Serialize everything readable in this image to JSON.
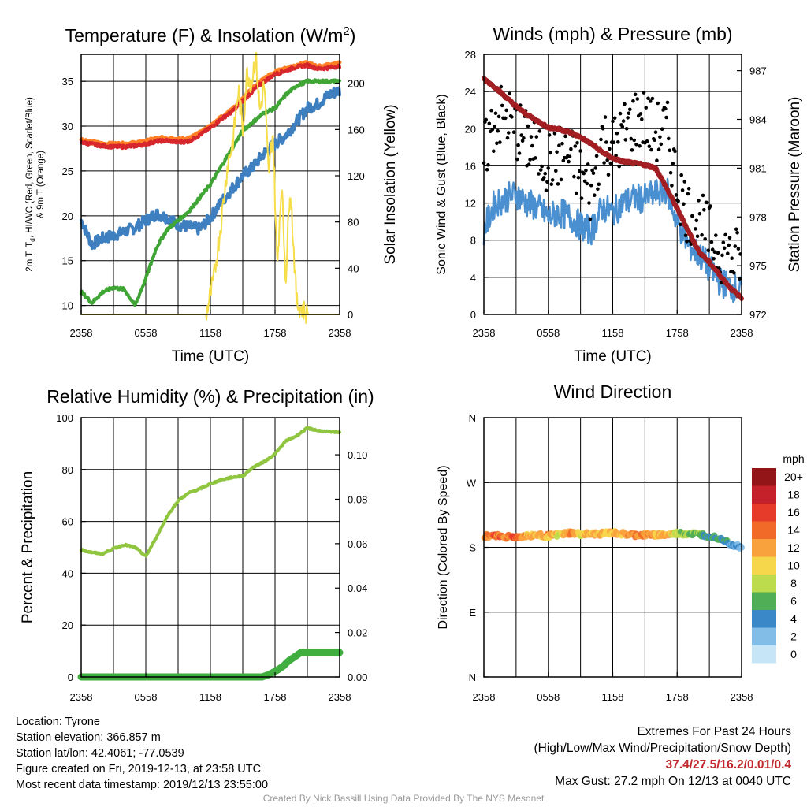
{
  "chart_data": [
    {
      "type": "line",
      "title": "Temperature (F) & Insolation (W/m²)",
      "title_parts": [
        "Temperature (F) & Insolation (W/m",
        "2",
        ")"
      ],
      "xlabel": "Time (UTC)",
      "ylabel": "2m T, Td, HI/WC (Red, Green, Scarlet/Blue) & 9m T (Orange)",
      "ylabel_lines": [
        "2m T, T",
        "d",
        ", HI/WC (Red, Green, Scarlet/Blue)",
        "& 9m T (Orange)"
      ],
      "ylabel_right": "Solar Insolation (Yellow)",
      "x_ticks": [
        "2358",
        "0558",
        "1158",
        "1758",
        "2358"
      ],
      "y_ticks": [
        "10",
        "15",
        "20",
        "25",
        "30",
        "35"
      ],
      "y_ticks_right": [
        "0",
        "40",
        "80",
        "120",
        "160",
        "200"
      ],
      "ylim": [
        9,
        38
      ],
      "ylim_right": [
        0,
        225
      ],
      "grid": true,
      "series": [
        {
          "axis": "left",
          "color": "#3d7fbf",
          "x": [
            0,
            1,
            2,
            3,
            4,
            5,
            6,
            7,
            8,
            9,
            10,
            11,
            12,
            13,
            14,
            15,
            16,
            17,
            18,
            19,
            20,
            21,
            22,
            23,
            24
          ],
          "values": [
            19.5,
            16.8,
            17.5,
            17.8,
            18.2,
            18.7,
            19.5,
            20.2,
            19.8,
            19.0,
            18.8,
            18.5,
            19.8,
            21.5,
            23.0,
            24.5,
            25.5,
            27.0,
            28.0,
            29.0,
            30.5,
            32.0,
            32.5,
            33.5,
            34.0
          ]
        },
        {
          "axis": "left",
          "color": "#ff7f24",
          "x": [
            0,
            1,
            2,
            3,
            4,
            5,
            6,
            7,
            8,
            9,
            10,
            11,
            12,
            13,
            14,
            15,
            16,
            17,
            18,
            19,
            20,
            21,
            22,
            23,
            24
          ],
          "values": [
            28.5,
            28.2,
            28.0,
            28.0,
            28.0,
            28.1,
            28.3,
            28.6,
            28.7,
            28.5,
            28.6,
            29.2,
            30.0,
            31.0,
            31.8,
            33.0,
            34.3,
            35.3,
            36.0,
            36.4,
            36.8,
            37.0,
            36.6,
            36.8,
            37.0
          ]
        },
        {
          "axis": "left",
          "color": "#d8262d",
          "x": [
            0,
            1,
            2,
            3,
            4,
            5,
            6,
            7,
            8,
            9,
            10,
            11,
            12,
            13,
            14,
            15,
            16,
            17,
            18,
            19,
            20,
            21,
            22,
            23,
            24
          ],
          "values": [
            28.2,
            28.0,
            27.8,
            27.7,
            27.7,
            27.8,
            28.0,
            28.3,
            28.4,
            28.2,
            28.3,
            29.0,
            29.8,
            30.8,
            31.6,
            32.8,
            34.0,
            35.0,
            35.8,
            36.2,
            36.6,
            36.8,
            36.4,
            36.5,
            36.7
          ]
        },
        {
          "axis": "left",
          "color": "#3fa535",
          "x": [
            0,
            1,
            2,
            3,
            4,
            5,
            6,
            7,
            8,
            9,
            10,
            11,
            12,
            13,
            14,
            15,
            16,
            17,
            18,
            19,
            20,
            21,
            22,
            23,
            24
          ],
          "values": [
            11.5,
            10.3,
            11.5,
            12.0,
            11.8,
            10.0,
            13.0,
            16.5,
            18.5,
            19.5,
            20.5,
            22.0,
            23.5,
            25.5,
            27.5,
            29.5,
            30.5,
            31.5,
            32.0,
            33.5,
            34.5,
            35.0,
            35.0,
            35.0,
            35.0
          ]
        },
        {
          "axis": "right",
          "color": "#f5de4a",
          "x": [
            0,
            4,
            8,
            11.6,
            12.3,
            13.0,
            13.6,
            14.1,
            14.6,
            15.0,
            15.4,
            15.8,
            16.2,
            16.6,
            17.0,
            17.4,
            17.8,
            18.2,
            18.6,
            19.0,
            19.4,
            20.0,
            21.0,
            24.0
          ],
          "values": [
            0,
            0,
            0,
            0,
            30,
            80,
            130,
            150,
            195,
            160,
            210,
            200,
            225,
            175,
            200,
            120,
            160,
            40,
            115,
            30,
            115,
            10,
            0,
            0
          ]
        }
      ]
    },
    {
      "type": "line",
      "title": "Winds (mph) & Pressure (mb)",
      "xlabel": "Time (UTC)",
      "ylabel": "Sonic Wind & Gust (Blue, Black)",
      "ylabel_right": "Station Pressure (Maroon)",
      "x_ticks": [
        "2358",
        "0558",
        "1158",
        "1758",
        "2358"
      ],
      "y_ticks": [
        "0",
        "4",
        "8",
        "12",
        "16",
        "20",
        "24",
        "28"
      ],
      "y_ticks_right": [
        "972",
        "975",
        "978",
        "981",
        "984",
        "987"
      ],
      "ylim": [
        0,
        28
      ],
      "ylim_right": [
        972,
        988
      ],
      "grid": true,
      "series": [
        {
          "axis": "left",
          "color": "#4a90d0",
          "x": [
            0,
            1,
            2,
            3,
            4,
            5,
            6,
            7,
            8,
            9,
            10,
            11,
            12,
            13,
            14,
            15,
            16,
            17,
            18,
            19,
            20,
            21,
            22,
            23,
            24
          ],
          "values": [
            9.0,
            12.0,
            12.5,
            13.0,
            12.0,
            11.5,
            10.5,
            11.0,
            10.5,
            9.5,
            9.0,
            11.5,
            11.0,
            12.0,
            12.5,
            12.5,
            13.0,
            13.5,
            10.0,
            7.5,
            6.5,
            5.0,
            3.5,
            3.0,
            2.5
          ]
        },
        {
          "axis": "left",
          "color": "#000000",
          "x": [
            0,
            1,
            2,
            3,
            4,
            5,
            6,
            7,
            8,
            9,
            10,
            11,
            12,
            13,
            14,
            15,
            16,
            17,
            18,
            19,
            20,
            21,
            22,
            23,
            24
          ],
          "values": [
            17.0,
            21.0,
            21.5,
            20.0,
            18.5,
            17.5,
            16.5,
            17.0,
            17.0,
            15.0,
            13.0,
            19.0,
            18.0,
            19.5,
            21.0,
            21.0,
            19.5,
            20.0,
            14.0,
            11.0,
            10.0,
            8.5,
            7.0,
            6.0,
            6.0
          ]
        },
        {
          "axis": "right",
          "color": "#a21e22",
          "x": [
            0,
            1,
            2,
            3,
            4,
            5,
            6,
            7,
            8,
            9,
            10,
            11,
            12,
            13,
            14,
            15,
            16,
            17,
            18,
            19,
            20,
            21,
            22,
            23,
            24
          ],
          "values": [
            986.5,
            986.0,
            985.4,
            984.8,
            984.3,
            983.9,
            983.5,
            983.4,
            983.2,
            982.9,
            982.5,
            982.0,
            981.6,
            981.4,
            981.3,
            981.2,
            981.0,
            979.8,
            978.5,
            977.2,
            975.9,
            975.2,
            974.4,
            973.6,
            973.0
          ]
        }
      ]
    },
    {
      "type": "line",
      "title": "Relative Humidity (%) & Precipitation (in)",
      "ylabel": "Percent & Precipitation",
      "x_ticks": [
        "2358",
        "0558",
        "1158",
        "1758",
        "2358"
      ],
      "y_ticks": [
        "0",
        "20",
        "40",
        "60",
        "80",
        "100"
      ],
      "y_ticks_right": [
        "0.00",
        "0.02",
        "0.04",
        "0.06",
        "0.08",
        "0.10"
      ],
      "ylim": [
        0,
        100
      ],
      "ylim_right": [
        0,
        0.1167
      ],
      "grid": true,
      "series": [
        {
          "axis": "left",
          "color": "#90c63f",
          "x": [
            0,
            1,
            2,
            3,
            4,
            5,
            6,
            7,
            8,
            9,
            10,
            11,
            12,
            13,
            14,
            15,
            16,
            17,
            18,
            19,
            20,
            21,
            22,
            23,
            24
          ],
          "values": [
            49,
            48,
            47.5,
            49.5,
            51,
            50,
            46.5,
            54,
            62,
            68,
            71,
            72.5,
            74.5,
            76,
            77,
            77.5,
            81,
            83,
            86,
            91,
            93,
            96,
            95,
            94.5,
            94.5
          ]
        },
        {
          "axis": "right",
          "color": "#3fae3f",
          "x": [
            0,
            16.8,
            17.4,
            18.2,
            18.8,
            19.2,
            19.8,
            20.4,
            24
          ],
          "values": [
            0,
            0,
            0.001,
            0.003,
            0.005,
            0.007,
            0.009,
            0.011,
            0.011
          ]
        }
      ]
    },
    {
      "type": "scatter",
      "title": "Wind Direction",
      "ylabel": "Direction (Colored By Speed)",
      "x_ticks": [
        "2358",
        "0558",
        "1158",
        "1758",
        "2358"
      ],
      "y_ticks": [
        "N",
        "E",
        "S",
        "W",
        "N"
      ],
      "ylim": [
        0,
        360
      ],
      "grid": true,
      "colorbar": {
        "title": "mph",
        "labels": [
          "20+",
          "18",
          "16",
          "14",
          "12",
          "10",
          "8",
          "6",
          "4",
          "2",
          "0"
        ],
        "colors": [
          "#931518",
          "#c5212a",
          "#e63b2b",
          "#f16a28",
          "#f8a23e",
          "#f6d64a",
          "#bcdb4d",
          "#4fae56",
          "#3b88c9",
          "#82bde8",
          "#c6e6f7"
        ]
      },
      "series": [
        {
          "name": "direction",
          "x": [
            0,
            1,
            2,
            3,
            4,
            5,
            6,
            7,
            8,
            9,
            10,
            11,
            12,
            13,
            14,
            15,
            16,
            17,
            18,
            19,
            20,
            21,
            22,
            23,
            24
          ],
          "values": [
            195,
            197,
            195,
            194,
            196,
            197,
            196,
            197,
            200,
            198,
            198,
            199,
            200,
            198,
            197,
            197,
            198,
            197,
            199,
            199,
            198,
            196,
            193,
            185,
            180
          ],
          "speed_mph": [
            12,
            14,
            13,
            15,
            12,
            11,
            12,
            9,
            13,
            10,
            12,
            11,
            11,
            12,
            12,
            13,
            11,
            12,
            8,
            7,
            7,
            5,
            5,
            3,
            3
          ]
        }
      ]
    }
  ],
  "footer": {
    "location": "Location: Tyrone",
    "elevation": "Station elevation: 366.857 m",
    "latlon": "Station lat/lon: 42.4061; -77.0539",
    "created": "Figure created on Fri, 2019-12-13, at 23:58 UTC",
    "recent": "Most recent data timestamp: 2019/12/13 23:55:00",
    "extremes_title": "Extremes For Past 24 Hours",
    "extremes_fields": "(High/Low/Max Wind/Precipitation/Snow Depth)",
    "extremes_values": "37.4/27.5/16.2/0.01/0.4",
    "max_gust": "Max Gust: 27.2 mph On 12/13 at 0040 UTC",
    "credit": "Created By Nick Bassill Using Data Provided By The NYS Mesonet"
  }
}
